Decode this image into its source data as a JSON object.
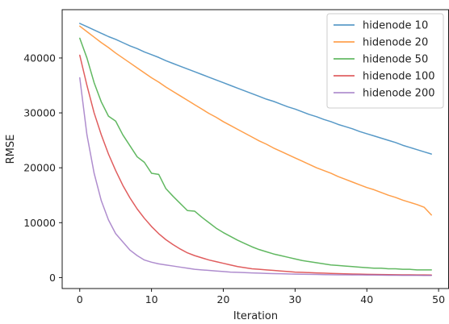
{
  "chart_data": {
    "type": "line",
    "xlabel": "Iteration",
    "ylabel": "RMSE",
    "xlim": [
      -2.45,
      51.45
    ],
    "ylim": [
      -2000,
      48800
    ],
    "xticks": [
      0,
      10,
      20,
      30,
      40,
      50
    ],
    "yticks": [
      0,
      10000,
      20000,
      30000,
      40000
    ],
    "grid": false,
    "legend_position": "top-right",
    "x": [
      0,
      1,
      2,
      3,
      4,
      5,
      6,
      7,
      8,
      9,
      10,
      11,
      12,
      13,
      14,
      15,
      16,
      17,
      18,
      19,
      20,
      21,
      22,
      23,
      24,
      25,
      26,
      27,
      28,
      29,
      30,
      31,
      32,
      33,
      34,
      35,
      36,
      37,
      38,
      39,
      40,
      41,
      42,
      43,
      44,
      45,
      46,
      47,
      48,
      49
    ],
    "series": [
      {
        "name": "hidenode 10",
        "color": "#1f77b4",
        "values": [
          46300,
          45700,
          45100,
          44500,
          43900,
          43400,
          42800,
          42200,
          41700,
          41100,
          40600,
          40100,
          39500,
          39000,
          38500,
          38000,
          37500,
          37000,
          36500,
          36000,
          35500,
          35000,
          34500,
          34000,
          33500,
          33000,
          32500,
          32100,
          31600,
          31100,
          30700,
          30200,
          29700,
          29300,
          28800,
          28400,
          27900,
          27500,
          27100,
          26600,
          26200,
          25800,
          25400,
          25000,
          24600,
          24100,
          23700,
          23300,
          22900,
          22500
        ]
      },
      {
        "name": "hidenode 20",
        "color": "#ff7f0e",
        "values": [
          45800,
          44800,
          43800,
          42800,
          41900,
          40900,
          40000,
          39100,
          38200,
          37300,
          36400,
          35600,
          34700,
          33900,
          33100,
          32300,
          31500,
          30700,
          29900,
          29200,
          28400,
          27700,
          27000,
          26300,
          25600,
          24900,
          24300,
          23600,
          23000,
          22400,
          21800,
          21200,
          20600,
          20000,
          19500,
          19000,
          18400,
          17900,
          17400,
          16900,
          16400,
          16000,
          15500,
          15000,
          14600,
          14100,
          13700,
          13300,
          12800,
          11400
        ]
      },
      {
        "name": "hidenode 50",
        "color": "#2ca02c",
        "values": [
          43600,
          40000,
          35500,
          32000,
          29400,
          28500,
          26000,
          24000,
          22000,
          21000,
          19000,
          18800,
          16200,
          14800,
          13500,
          12200,
          12100,
          11000,
          10000,
          9000,
          8200,
          7500,
          6800,
          6200,
          5600,
          5100,
          4700,
          4300,
          4000,
          3700,
          3400,
          3100,
          2900,
          2700,
          2500,
          2300,
          2200,
          2100,
          2000,
          1900,
          1800,
          1700,
          1700,
          1600,
          1600,
          1500,
          1500,
          1400,
          1400,
          1400
        ]
      },
      {
        "name": "hidenode 100",
        "color": "#d62728",
        "values": [
          40500,
          35000,
          30000,
          26000,
          22500,
          19500,
          16800,
          14500,
          12500,
          10800,
          9300,
          8000,
          6900,
          6000,
          5200,
          4500,
          4000,
          3600,
          3200,
          2900,
          2600,
          2300,
          2000,
          1800,
          1600,
          1500,
          1400,
          1300,
          1200,
          1100,
          1000,
          950,
          900,
          850,
          800,
          760,
          720,
          680,
          650,
          620,
          590,
          570,
          550,
          530,
          510,
          500,
          490,
          480,
          470,
          460
        ]
      },
      {
        "name": "hidenode 200",
        "color": "#9467bd",
        "values": [
          36400,
          26000,
          19000,
          14000,
          10500,
          8000,
          6500,
          5000,
          4000,
          3200,
          2800,
          2500,
          2300,
          2100,
          1900,
          1700,
          1500,
          1400,
          1300,
          1200,
          1100,
          1000,
          950,
          900,
          850,
          800,
          760,
          720,
          690,
          660,
          630,
          600,
          580,
          560,
          540,
          520,
          500,
          490,
          480,
          470,
          460,
          450,
          440,
          430,
          420,
          410,
          400,
          400,
          390,
          380
        ]
      }
    ]
  }
}
